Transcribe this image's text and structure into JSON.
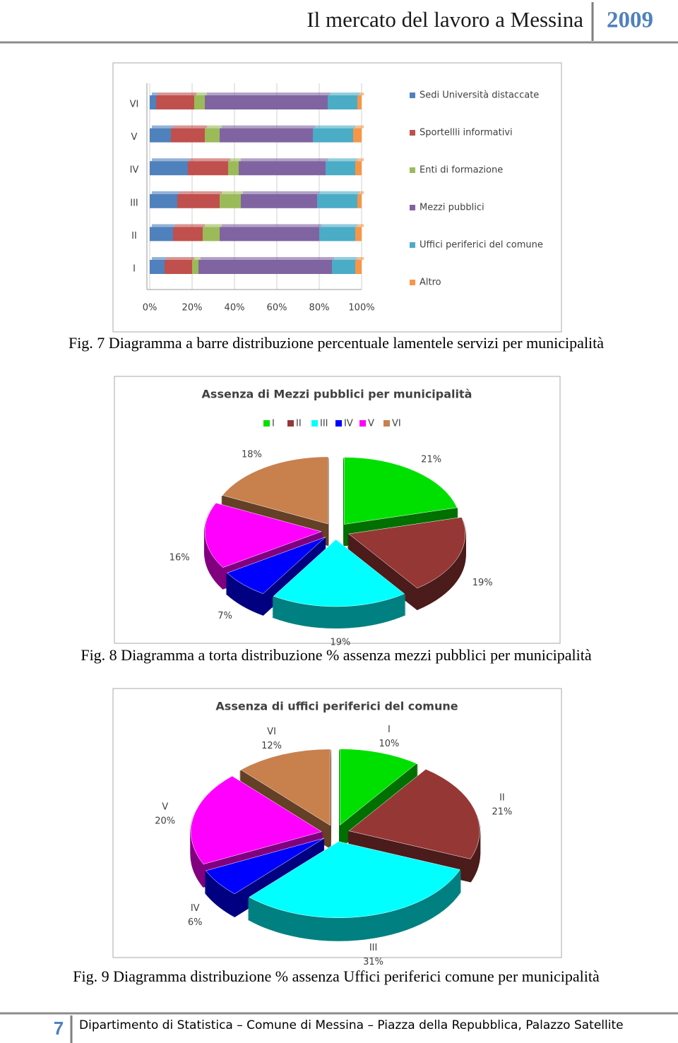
{
  "header": {
    "title": "Il mercato del lavoro a Messina",
    "year": "2009"
  },
  "chart_data": [
    {
      "type": "bar",
      "orientation": "horizontal",
      "stacked": true,
      "categories": [
        "I",
        "II",
        "III",
        "IV",
        "V",
        "VI"
      ],
      "series": [
        {
          "name": "Sedi Università distaccate",
          "color": "#4f81bd",
          "values": [
            7,
            11,
            13,
            18,
            10,
            3
          ]
        },
        {
          "name": "Sportellli informativi",
          "color": "#c0504d",
          "values": [
            13,
            14,
            20,
            19,
            16,
            18
          ]
        },
        {
          "name": "Enti di formazione",
          "color": "#9bbb59",
          "values": [
            3,
            8,
            10,
            5,
            7,
            5
          ]
        },
        {
          "name": "Mezzi pubblici",
          "color": "#8064a2",
          "values": [
            63,
            47,
            36,
            41,
            44,
            58
          ]
        },
        {
          "name": "Uffici periferici del comune",
          "color": "#4bacc6",
          "values": [
            11,
            17,
            19,
            14,
            19,
            14
          ]
        },
        {
          "name": "Altro",
          "color": "#f79646",
          "values": [
            3,
            3,
            2,
            3,
            4,
            2
          ]
        }
      ],
      "xlim": [
        0,
        100
      ],
      "xticks": [
        {
          "value": 0,
          "label": "0%"
        },
        {
          "value": 20,
          "label": "20%"
        },
        {
          "value": 40,
          "label": "40%"
        },
        {
          "value": 60,
          "label": "60%"
        },
        {
          "value": 80,
          "label": "80%"
        },
        {
          "value": 100,
          "label": "100%"
        }
      ],
      "grid": true,
      "legend": "right"
    },
    {
      "type": "pie",
      "title": "Assenza di Mezzi pubblici per municipalità",
      "categories": [
        "I",
        "II",
        "III",
        "IV",
        "V",
        "VI"
      ],
      "values": [
        21,
        19,
        19,
        7,
        16,
        18
      ],
      "value_labels": [
        "21%",
        "19%",
        "19%",
        "7%",
        "16%",
        "18%"
      ],
      "colors": [
        "#00e000",
        "#953735",
        "#00ffff",
        "#0000ff",
        "#ff00ff",
        "#c8804d"
      ],
      "legend": "top",
      "category_labels": false
    },
    {
      "type": "pie",
      "title": "Assenza di uffici periferici del comune",
      "categories": [
        "I",
        "II",
        "III",
        "IV",
        "V",
        "VI"
      ],
      "values": [
        10,
        21,
        31,
        6,
        20,
        12
      ],
      "value_labels": [
        "10%",
        "21%",
        "31%",
        "6%",
        "20%",
        "12%"
      ],
      "colors": [
        "#00e000",
        "#953735",
        "#00ffff",
        "#0000ff",
        "#ff00ff",
        "#c8804d"
      ],
      "legend": "none",
      "category_labels": true
    }
  ],
  "captions": [
    "Fig. 7 Diagramma a barre distribuzione percentuale lamentele servizi per municipalità",
    "Fig. 8 Diagramma a torta distribuzione % assenza mezzi pubblici per municipalità",
    "Fig. 9 Diagramma distribuzione %  assenza Uffici periferici comune per municipalità"
  ],
  "footer": {
    "page": "7",
    "text": "Dipartimento di Statistica – Comune di Messina – Piazza della Repubblica, Palazzo Satellite"
  }
}
